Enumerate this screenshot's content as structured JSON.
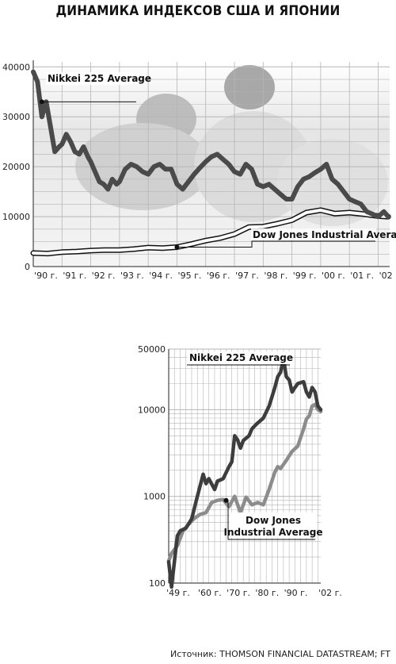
{
  "page": {
    "title": "ДИНАМИКА ИНДЕКСОВ США И ЯПОНИИ",
    "source": "Источник: THOMSON FINANCIAL DATASTREAM; FT"
  },
  "colors": {
    "nikkei_top": "#4a4a4a",
    "dow_top_outline": "#111111",
    "nikkei_bottom": "#3d3d3d",
    "dow_bottom": "#8c8c8c",
    "grid": "#b5b5b5",
    "photo_background": "#d8d8d8"
  },
  "chart_data": [
    {
      "type": "line",
      "title": "",
      "x_ticks": [
        "'90 г.",
        "'91 г.",
        "'92 г.",
        "'93 г.",
        "'94 г.",
        "'95 г.",
        "'96 г.",
        "'97 г.",
        "'98 г.",
        "'99 г.",
        "'00 г.",
        "'01 г.",
        "'02 г."
      ],
      "y_ticks": [
        0,
        10000,
        20000,
        30000,
        40000
      ],
      "ylim": [
        0,
        41000
      ],
      "xlim": [
        1990.0,
        2002.4
      ],
      "grid": true,
      "series": [
        {
          "name": "Nikkei 225 Average",
          "x": [
            1990.0,
            1990.15,
            1990.3,
            1990.45,
            1990.6,
            1990.75,
            1990.9,
            1991.0,
            1991.15,
            1991.3,
            1991.45,
            1991.6,
            1991.75,
            1991.9,
            1992.0,
            1992.15,
            1992.3,
            1992.45,
            1992.6,
            1992.75,
            1992.9,
            1993.0,
            1993.2,
            1993.4,
            1993.6,
            1993.8,
            1994.0,
            1994.2,
            1994.4,
            1994.6,
            1994.8,
            1995.0,
            1995.2,
            1995.4,
            1995.6,
            1995.8,
            1996.0,
            1996.2,
            1996.4,
            1996.6,
            1996.8,
            1997.0,
            1997.2,
            1997.4,
            1997.6,
            1997.8,
            1998.0,
            1998.2,
            1998.4,
            1998.6,
            1998.8,
            1999.0,
            1999.2,
            1999.4,
            1999.6,
            1999.8,
            2000.0,
            2000.2,
            2000.4,
            2000.6,
            2000.8,
            2001.0,
            2001.2,
            2001.4,
            2001.6,
            2001.8,
            2002.0,
            2002.2,
            2002.35
          ],
          "values": [
            39000,
            37000,
            30000,
            33000,
            28000,
            23000,
            24000,
            24500,
            26500,
            25000,
            23000,
            22500,
            24000,
            22000,
            21000,
            19000,
            17000,
            16500,
            15500,
            17500,
            16500,
            17000,
            19500,
            20500,
            20000,
            19000,
            18500,
            20000,
            20500,
            19500,
            19500,
            16500,
            15500,
            17000,
            18500,
            19800,
            21000,
            22000,
            22500,
            21500,
            20500,
            19000,
            18500,
            20500,
            19500,
            16500,
            16000,
            16500,
            15500,
            14500,
            13500,
            13500,
            16000,
            17500,
            18000,
            18800,
            19500,
            20500,
            17500,
            16500,
            15000,
            13500,
            13000,
            12500,
            11000,
            10500,
            10000,
            11000,
            10000
          ]
        },
        {
          "name": "Dow Jones Industrial Average",
          "x": [
            1990.0,
            1990.5,
            1991.0,
            1991.5,
            1992.0,
            1992.5,
            1993.0,
            1993.5,
            1994.0,
            1994.5,
            1995.0,
            1995.5,
            1996.0,
            1996.5,
            1997.0,
            1997.5,
            1998.0,
            1998.5,
            1999.0,
            1999.5,
            2000.0,
            2000.5,
            2001.0,
            2001.5,
            2002.0,
            2002.35
          ],
          "values": [
            2700,
            2600,
            2900,
            3000,
            3200,
            3300,
            3300,
            3500,
            3800,
            3700,
            3900,
            4500,
            5200,
            5700,
            6500,
            7900,
            8000,
            8600,
            9300,
            10800,
            11300,
            10600,
            10800,
            10500,
            10100,
            10000
          ]
        }
      ],
      "annotations": [
        "Nikkei 225 Average",
        "Dow Jones Industrial Average"
      ]
    },
    {
      "type": "line",
      "title": "",
      "y_scale": "log",
      "x_ticks": [
        "'49 г.",
        "'60 г.",
        "'70 г.",
        "'80 г.",
        "'90 г.",
        "'02 г."
      ],
      "y_ticks": [
        100,
        1000,
        10000,
        50000
      ],
      "ylim": [
        100,
        50000
      ],
      "xlim": [
        1949,
        2002
      ],
      "grid": true,
      "series": [
        {
          "name": "Nikkei 225 Average",
          "x": [
            1949,
            1950,
            1952,
            1953,
            1955,
            1957,
            1959,
            1961,
            1962,
            1963,
            1965,
            1966,
            1968,
            1970,
            1971,
            1972,
            1973,
            1974,
            1975,
            1977,
            1978,
            1979,
            1980,
            1982,
            1984,
            1986,
            1987,
            1988,
            1989,
            1990,
            1991,
            1992,
            1993,
            1994,
            1996,
            1997,
            1998,
            1999,
            2000,
            2001,
            2002
          ],
          "values": [
            176,
            90,
            350,
            400,
            430,
            550,
            1000,
            1800,
            1400,
            1600,
            1200,
            1500,
            1600,
            2200,
            2500,
            5000,
            4500,
            3600,
            4400,
            5000,
            6000,
            6500,
            7000,
            8000,
            11000,
            18000,
            24000,
            27000,
            38900,
            24000,
            22000,
            16000,
            18000,
            20000,
            21000,
            16000,
            14000,
            18000,
            16000,
            11000,
            10000
          ]
        },
        {
          "name": "Dow Jones Industrial Average",
          "x": [
            1949,
            1950,
            1952,
            1954,
            1956,
            1958,
            1960,
            1962,
            1964,
            1966,
            1968,
            1970,
            1972,
            1974,
            1976,
            1978,
            1980,
            1982,
            1984,
            1986,
            1987,
            1988,
            1990,
            1992,
            1994,
            1996,
            1997,
            1998,
            1999,
            2000,
            2001,
            2002
          ],
          "values": [
            180,
            220,
            270,
            400,
            480,
            560,
            620,
            650,
            850,
            900,
            920,
            760,
            1000,
            650,
            980,
            800,
            850,
            800,
            1200,
            1900,
            2200,
            2100,
            2600,
            3300,
            3800,
            6000,
            7800,
            8500,
            11000,
            11500,
            10000,
            9500
          ]
        }
      ],
      "annotations": [
        "Nikkei 225 Average",
        "Dow Jones Industrial Average"
      ]
    }
  ]
}
